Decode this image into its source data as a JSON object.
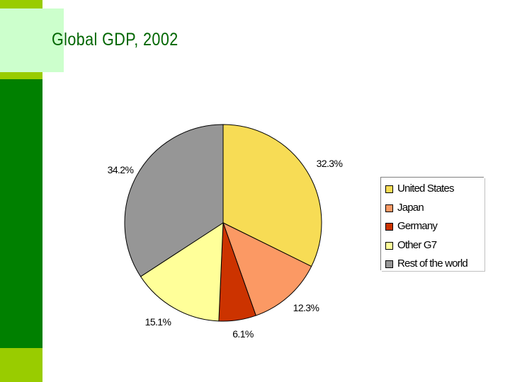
{
  "slide": {
    "title": "Global GDP, 2002"
  },
  "colors": {
    "green_bar": "#008000",
    "lime_bar": "#99cc00",
    "title_box": "#ccffcc",
    "title_text": "#006600"
  },
  "chart_data": {
    "type": "pie",
    "categories": [
      "United States",
      "Japan",
      "Germany",
      "Other G7",
      "Rest of the world"
    ],
    "values": [
      32.3,
      12.3,
      6.1,
      15.1,
      34.2
    ],
    "labels": [
      "32.3%",
      "12.3%",
      "6.1%",
      "15.1%",
      "34.2%"
    ],
    "colors": [
      "#f7dc55",
      "#fb9964",
      "#cc3300",
      "#ffff99",
      "#969696"
    ],
    "title": "",
    "legend_position": "right",
    "start_angle": "12 o'clock, clockwise"
  }
}
